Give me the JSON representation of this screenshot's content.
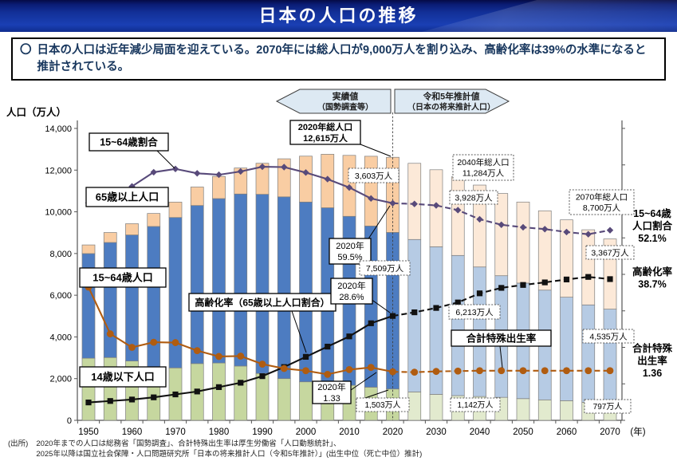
{
  "header": {
    "title": "日本の人口の推移"
  },
  "summary": {
    "marker": "〇",
    "text": "日本の人口は近年減少局面を迎えている。2070年には総人口が9,000万人を割り込み、高齢化率は39%の水準になると推計されている。"
  },
  "banners": {
    "actual": {
      "lines": [
        "実績値",
        "（国勢調査等）"
      ]
    },
    "projection": {
      "lines": [
        "令和5年推計値",
        "（日本の将来推計人口）"
      ]
    }
  },
  "axis": {
    "y_title": "人口（万人）",
    "x_unit": "(年)",
    "y_max": 14000,
    "y_tick_step": 2000,
    "percent_axis_max": 80,
    "tfr_axis_max": 8
  },
  "chart_data": {
    "type": "bar",
    "subtype": "stacked-bars-with-ratio-lines",
    "title": "日本の人口の推移",
    "xlabel": "(年)",
    "ylabel": "人口（万人）",
    "ylim": [
      0,
      14000
    ],
    "grid": false,
    "categories": [
      1950,
      1955,
      1960,
      1965,
      1970,
      1975,
      1980,
      1985,
      1990,
      1995,
      2000,
      2005,
      2010,
      2015,
      2020,
      2025,
      2030,
      2035,
      2040,
      2045,
      2050,
      2055,
      2060,
      2065,
      2070
    ],
    "projection_from_index": 15,
    "series": [
      {
        "name": "14歳以下人口",
        "unit": "万人",
        "values": [
          2979,
          3012,
          2844,
          2553,
          2515,
          2722,
          2751,
          2603,
          2249,
          2001,
          1847,
          1752,
          1680,
          1589,
          1503,
          1363,
          1246,
          1185,
          1142,
          1103,
          1041,
          982,
          942,
          866,
          797
        ]
      },
      {
        "name": "15~64歳人口",
        "unit": "万人",
        "values": [
          5017,
          5517,
          6047,
          6744,
          7212,
          7581,
          7883,
          8251,
          8590,
          8716,
          8622,
          8442,
          8103,
          7729,
          7509,
          7310,
          7076,
          6722,
          6213,
          5832,
          5540,
          5263,
          4963,
          4670,
          4535
        ]
      },
      {
        "name": "65歳以上人口",
        "unit": "万人",
        "values": [
          416,
          479,
          539,
          624,
          739,
          887,
          1065,
          1247,
          1489,
          1826,
          2201,
          2567,
          2925,
          3347,
          3603,
          3653,
          3696,
          3774,
          3928,
          3945,
          3888,
          3804,
          3710,
          3603,
          3367
        ]
      }
    ],
    "lines": [
      {
        "name": "15~64歳割合",
        "axis": "percent",
        "unit": "%",
        "marker": "diamond",
        "values": [
          59.6,
          61.2,
          64.1,
          68.0,
          68.9,
          67.7,
          67.3,
          68.2,
          69.5,
          69.4,
          67.9,
          66.1,
          63.8,
          60.8,
          59.5,
          59.3,
          58.9,
          57.6,
          55.1,
          53.6,
          52.9,
          52.4,
          51.6,
          51.0,
          52.1
        ]
      },
      {
        "name": "高齢化率",
        "axis": "percent",
        "unit": "%",
        "marker": "square",
        "values": [
          4.9,
          5.3,
          5.7,
          6.3,
          7.1,
          7.9,
          9.1,
          10.3,
          12.1,
          14.6,
          17.4,
          20.2,
          23.0,
          26.6,
          28.6,
          29.6,
          30.8,
          32.3,
          34.8,
          36.3,
          37.1,
          37.8,
          38.6,
          39.3,
          38.7
        ]
      },
      {
        "name": "合計特殊出生率",
        "axis": "tfr",
        "unit": "",
        "marker": "circle",
        "values": [
          3.65,
          2.37,
          2.0,
          2.14,
          2.13,
          1.91,
          1.75,
          1.76,
          1.54,
          1.42,
          1.36,
          1.26,
          1.39,
          1.45,
          1.33,
          1.32,
          1.34,
          1.35,
          1.36,
          1.36,
          1.36,
          1.36,
          1.36,
          1.36,
          1.36
        ]
      }
    ]
  },
  "annotations": [
    {
      "id": "total-2020",
      "style": "solid",
      "lines": [
        "2020年総人口",
        "12,615万人"
      ]
    },
    {
      "id": "label-ratio1564",
      "style": "solid",
      "lines": [
        "15~64歳割合"
      ]
    },
    {
      "id": "label-age65",
      "style": "solid",
      "lines": [
        "65歳以上人口"
      ]
    },
    {
      "id": "label-age1564",
      "style": "solid",
      "lines": [
        "15~64歳人口"
      ]
    },
    {
      "id": "label-age014",
      "style": "solid",
      "lines": [
        "14歳以下人口"
      ]
    },
    {
      "id": "label-aging",
      "style": "solid",
      "lines": [
        "高齢化率（65歳以上人口割合）"
      ]
    },
    {
      "id": "label-tfr",
      "style": "solid",
      "lines": [
        "合計特殊出生率"
      ]
    },
    {
      "id": "cb-2020-ratio",
      "style": "solid",
      "lines": [
        "2020年",
        "59.5%"
      ]
    },
    {
      "id": "cb-2020-aging",
      "style": "solid",
      "lines": [
        "2020年",
        "28.6%"
      ]
    },
    {
      "id": "cb-2020-tfr",
      "style": "solid",
      "lines": [
        "2020年",
        "1.33"
      ]
    },
    {
      "id": "v-3603",
      "style": "dotted",
      "lines": [
        "3,603万人"
      ]
    },
    {
      "id": "v-7509",
      "style": "dotted",
      "lines": [
        "7,509万人"
      ]
    },
    {
      "id": "v-1503",
      "style": "dotted",
      "lines": [
        "1,503万人"
      ]
    },
    {
      "id": "total-2040",
      "style": "dotted",
      "lines": [
        "2040年総人口",
        "11,284万人"
      ]
    },
    {
      "id": "v-3928",
      "style": "dotted",
      "lines": [
        "3,928万人"
      ]
    },
    {
      "id": "v-6213",
      "style": "dotted",
      "lines": [
        "6,213万人"
      ]
    },
    {
      "id": "v-1142",
      "style": "dotted",
      "lines": [
        "1,142万人"
      ]
    },
    {
      "id": "total-2070",
      "style": "dotted",
      "lines": [
        "2070年総人口",
        "8,700万人"
      ]
    },
    {
      "id": "v-3367",
      "style": "dotted",
      "lines": [
        "3,367万人"
      ]
    },
    {
      "id": "v-4535",
      "style": "dotted",
      "lines": [
        "4,535万人"
      ]
    },
    {
      "id": "v-797",
      "style": "dotted",
      "lines": [
        "797万人"
      ]
    }
  ],
  "side_labels": [
    {
      "id": "side-ratio",
      "lines": [
        "15~64歳",
        "人口割合",
        "52.1%"
      ]
    },
    {
      "id": "side-aging",
      "lines": [
        "高齢化率",
        "38.7%"
      ]
    },
    {
      "id": "side-tfr",
      "lines": [
        "合計特殊",
        "出生率",
        "1.36"
      ]
    }
  ],
  "source": {
    "label": "(出所)",
    "line1": "2020年までの人口は総務省「国勢調査」、合計特殊出生率は厚生労働省「人口動態統計」、",
    "line2": "2025年以降は国立社会保障・人口問題研究所「日本の将来推計人口（令和5年推計）」(出生中位（死亡中位）推計)"
  },
  "colors": {
    "bar_child_actual": "#c6d79f",
    "bar_child_projection": "#e2eace",
    "bar_working_actual": "#4d7cc1",
    "bar_working_projection": "#b6cbe4",
    "bar_elderly_actual": "#f9cda3",
    "bar_elderly_projection": "#fce9d8",
    "bar_border": "#7f7f7f",
    "line_ratio": "#584a7a",
    "line_aging": "#111111",
    "line_tfr": "#b05c10",
    "banner_fill": "#dde9f3",
    "header_blue": "#1636a4",
    "text_navy": "#17365d"
  }
}
